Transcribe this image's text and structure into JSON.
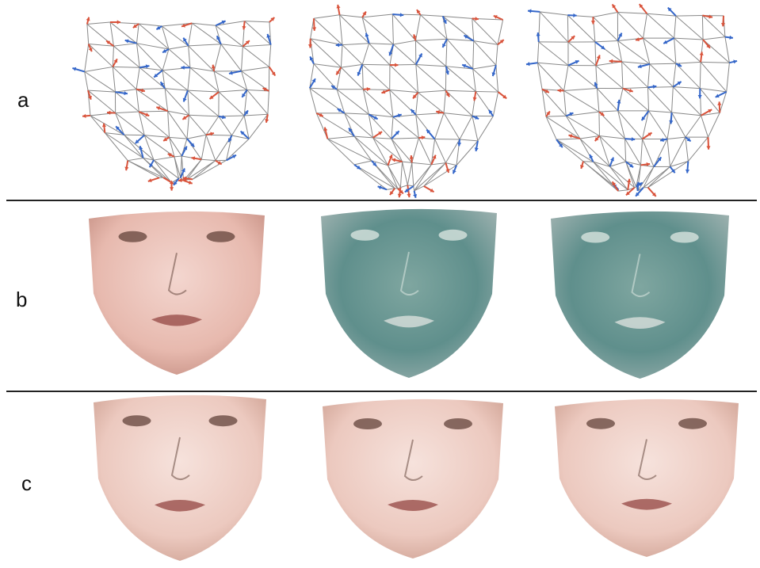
{
  "rows": [
    {
      "label": "a"
    },
    {
      "label": "b"
    },
    {
      "label": "c"
    }
  ]
}
